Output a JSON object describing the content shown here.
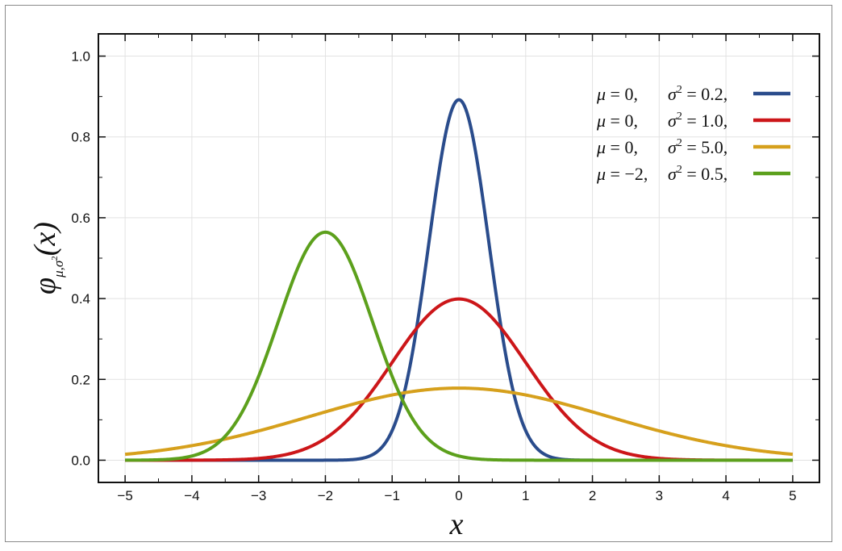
{
  "chart_data": {
    "type": "line",
    "xlabel": "x",
    "ylabel": {
      "symbol": "φ",
      "subscript_mu": "μ",
      "subscript_sep": ",",
      "subscript_sigma": "σ",
      "subscript_power": "2",
      "argument": "(x)"
    },
    "xlim": [
      -5.4,
      5.4
    ],
    "ylim": [
      -0.055,
      1.055
    ],
    "x_ticks": [
      -5,
      -4,
      -3,
      -2,
      -1,
      0,
      1,
      2,
      3,
      4,
      5
    ],
    "x_tick_labels": [
      "−5",
      "−4",
      "−3",
      "−2",
      "−1",
      "0",
      "1",
      "2",
      "3",
      "4",
      "5"
    ],
    "y_ticks": [
      0.0,
      0.2,
      0.4,
      0.6,
      0.8,
      1.0
    ],
    "y_tick_labels": [
      "0.0",
      "0.2",
      "0.4",
      "0.6",
      "0.8",
      "1.0"
    ],
    "grid": true,
    "legend_position": "top-right",
    "series": [
      {
        "mu": 0,
        "sigma2": 0.2,
        "color": "#2a4c8c",
        "legend": {
          "mu_sym": "μ",
          "mu_val": " = 0,",
          "sigma_sym": "σ",
          "sigma_pow": "2",
          "sigma_val": " = 0.2,"
        }
      },
      {
        "mu": 0,
        "sigma2": 1.0,
        "color": "#cc1619",
        "legend": {
          "mu_sym": "μ",
          "mu_val": " = 0,",
          "sigma_sym": "σ",
          "sigma_pow": "2",
          "sigma_val": " = 1.0,"
        }
      },
      {
        "mu": 0,
        "sigma2": 5.0,
        "color": "#d6a01c",
        "legend": {
          "mu_sym": "μ",
          "mu_val": " = 0,",
          "sigma_sym": "σ",
          "sigma_pow": "2",
          "sigma_val": " = 5.0,"
        }
      },
      {
        "mu": -2,
        "sigma2": 0.5,
        "color": "#5ca01c",
        "legend": {
          "mu_sym": "μ",
          "mu_val": " = −2,",
          "sigma_sym": "σ",
          "sigma_pow": "2",
          "sigma_val": " = 0.5,"
        }
      }
    ]
  }
}
